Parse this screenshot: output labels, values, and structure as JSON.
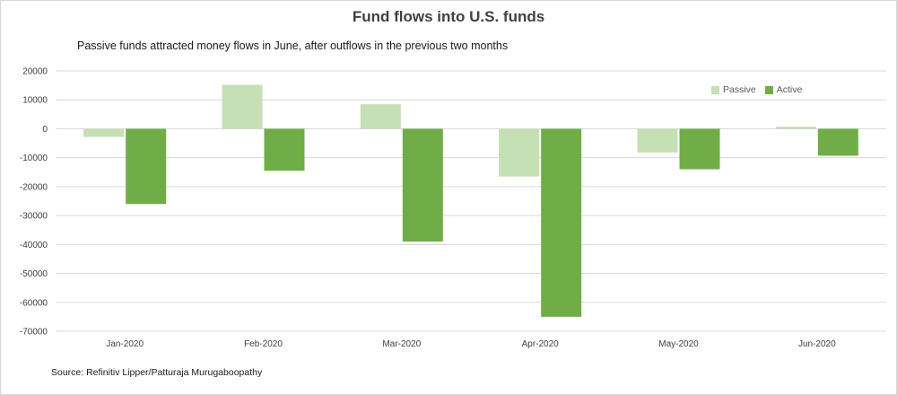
{
  "title": "Fund flows into U.S. funds",
  "subtitle": "Passive funds attracted money flows in June, after outflows in the previous two months",
  "source": "Source: Refinitiv Lipper/Patturaja Murugaboopathy",
  "colors": {
    "passive": "#c5e0b4",
    "active": "#70ad47",
    "grid": "#d9d9d9"
  },
  "chart_data": {
    "type": "bar",
    "categories": [
      "Jan-2020",
      "Feb-2020",
      "Mar-2020",
      "Apr-2020",
      "May-2020",
      "Jun-2020"
    ],
    "series": [
      {
        "name": "Passive",
        "values": [
          -2800,
          15200,
          8500,
          -16500,
          -8200,
          700
        ]
      },
      {
        "name": "Active",
        "values": [
          -26000,
          -14500,
          -39000,
          -65000,
          -14000,
          -9300
        ]
      }
    ],
    "yticks": [
      20000,
      10000,
      0,
      -10000,
      -20000,
      -30000,
      -40000,
      -50000,
      -60000,
      -70000
    ],
    "ylim": [
      -70000,
      20000
    ],
    "grid": true,
    "legend_position": "top-right"
  }
}
